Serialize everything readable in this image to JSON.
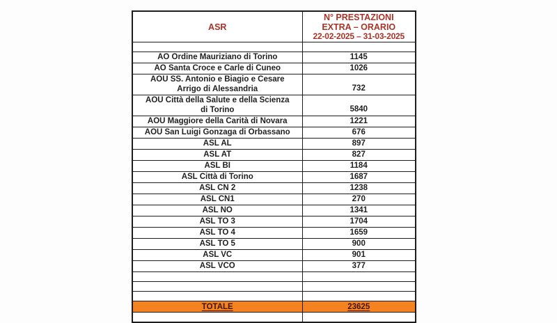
{
  "colors": {
    "header_text": "#A93226",
    "body_text": "#1f1f1f",
    "total_row_bg": "#F58220",
    "total_row_text": "#401505",
    "border": "#1c1c1c",
    "page_background": "#fdfdfd"
  },
  "table": {
    "header": {
      "col1": "ASR",
      "col2_lines": [
        "N° PRESTAZIONI",
        "EXTRA – ORARIO",
        "22-02-2025 – 31-03-2025"
      ]
    },
    "rows": [
      {
        "type": "spacer"
      },
      {
        "type": "data",
        "asr": "AO Ordine Mauriziano di Torino",
        "value": "1145"
      },
      {
        "type": "data",
        "asr": "AO Santa Croce e Carle di Cuneo",
        "value": "1026"
      },
      {
        "type": "data",
        "asr": "AOU SS. Antonio e Biagio e Cesare\nArrigo di Alessandria",
        "value": "732",
        "twoLine": true
      },
      {
        "type": "data",
        "asr": "AOU Città della Salute e della Scienza\ndi Torino",
        "value": "5840",
        "twoLine": true
      },
      {
        "type": "data",
        "asr": "AOU Maggiore della Carità di Novara",
        "value": "1221"
      },
      {
        "type": "data",
        "asr": "AOU San Luigi Gonzaga di Orbassano",
        "value": "676"
      },
      {
        "type": "data",
        "asr": "ASL AL",
        "value": "897"
      },
      {
        "type": "data",
        "asr": "ASL AT",
        "value": "827"
      },
      {
        "type": "data",
        "asr": "ASL BI",
        "value": "1184"
      },
      {
        "type": "data",
        "asr": "ASL Città di Torino",
        "value": "1687"
      },
      {
        "type": "data",
        "asr": "ASL CN 2",
        "value": "1238"
      },
      {
        "type": "data",
        "asr": "ASL CN1",
        "value": "270"
      },
      {
        "type": "data",
        "asr": "ASL NO",
        "value": "1341"
      },
      {
        "type": "data",
        "asr": "ASL TO 3",
        "value": "1704"
      },
      {
        "type": "data",
        "asr": "ASL TO 4",
        "value": "1659"
      },
      {
        "type": "data",
        "asr": "ASL TO 5",
        "value": "900"
      },
      {
        "type": "data",
        "asr": "ASL VC",
        "value": "901"
      },
      {
        "type": "data",
        "asr": "ASL VCO",
        "value": "377"
      },
      {
        "type": "spacer"
      },
      {
        "type": "spacer"
      },
      {
        "type": "spacer"
      },
      {
        "type": "total",
        "asr": "TOTALE",
        "value": "23625"
      },
      {
        "type": "spacer"
      }
    ]
  }
}
